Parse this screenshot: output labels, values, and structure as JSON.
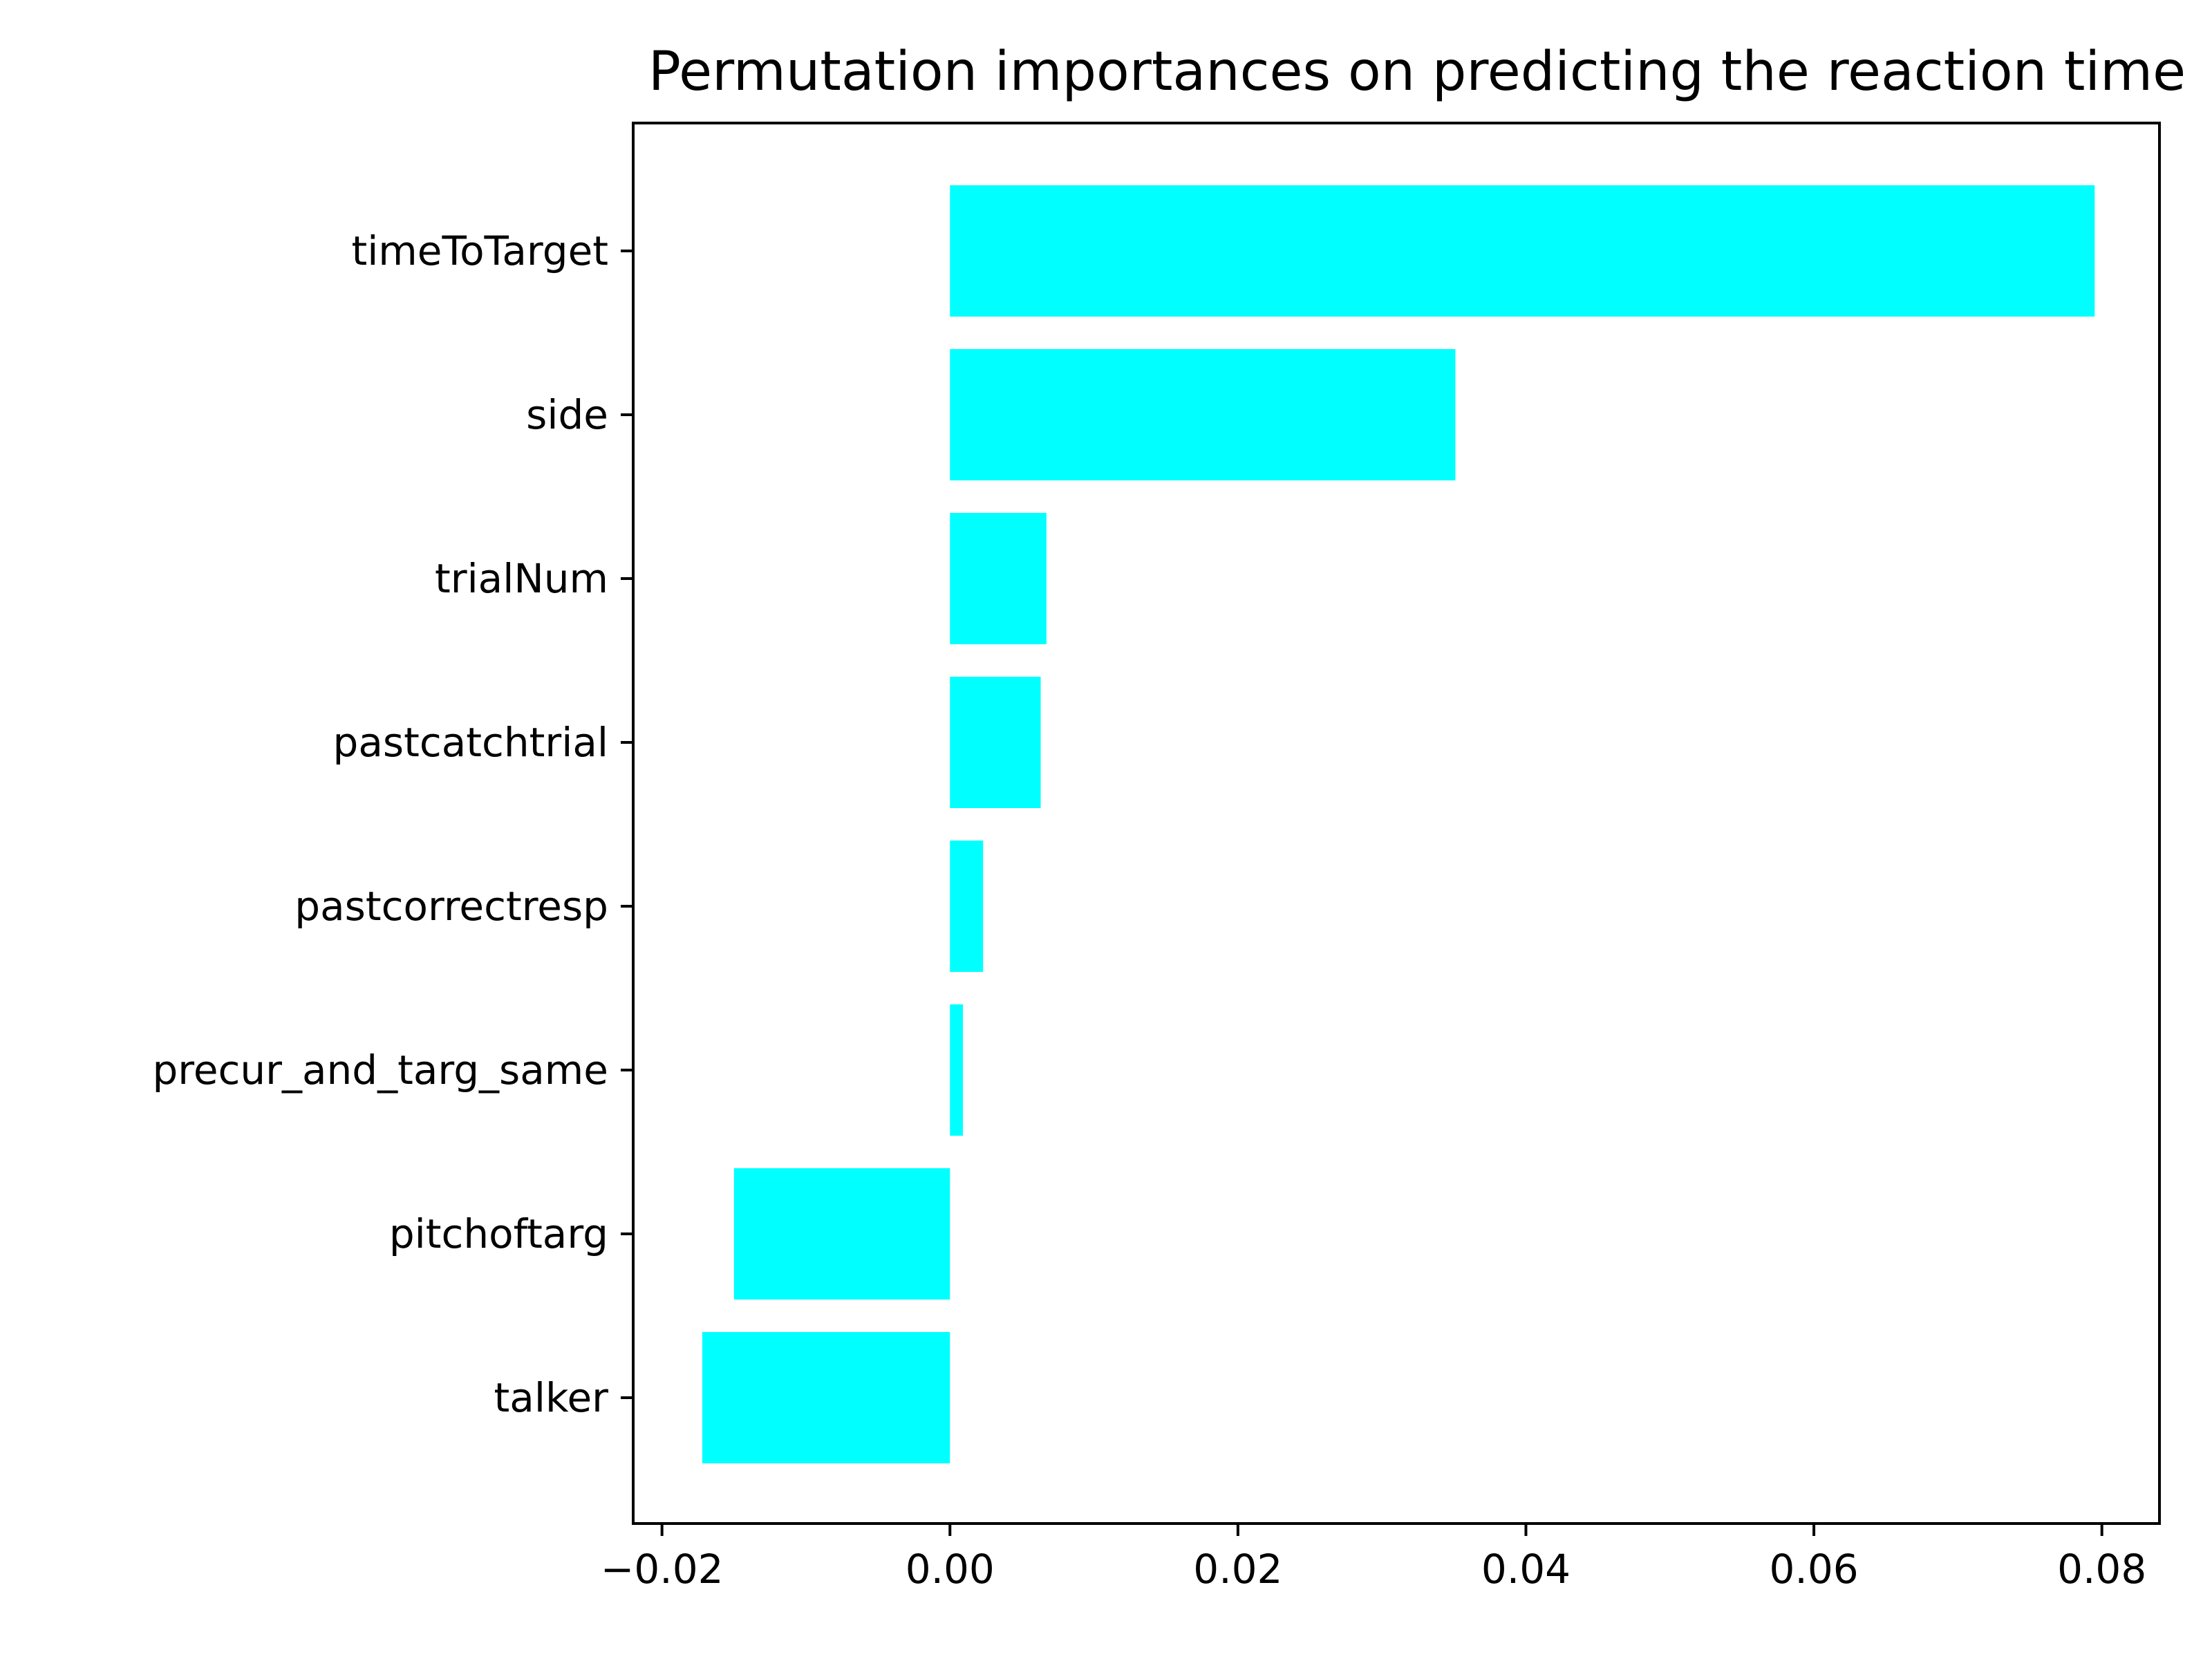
{
  "chart_data": {
    "type": "bar",
    "orientation": "horizontal",
    "title": "Permutation importances on predicting the reaction time",
    "xlabel": "",
    "ylabel": "",
    "categories": [
      "timeToTarget",
      "side",
      "trialNum",
      "pastcatchtrial",
      "pastcorrectresp",
      "precur_and_targ_same",
      "pitchoftarg",
      "talker"
    ],
    "values": [
      0.0795,
      0.0351,
      0.0067,
      0.0063,
      0.0023,
      0.0009,
      -0.015,
      -0.0172
    ],
    "xlim": [
      -0.022,
      0.084
    ],
    "xticks": [
      -0.02,
      0.0,
      0.02,
      0.04,
      0.06,
      0.08
    ],
    "xtick_labels": [
      "−0.02",
      "0.00",
      "0.02",
      "0.04",
      "0.06",
      "0.08"
    ],
    "bar_color": "#00FFFF",
    "grid": false
  }
}
